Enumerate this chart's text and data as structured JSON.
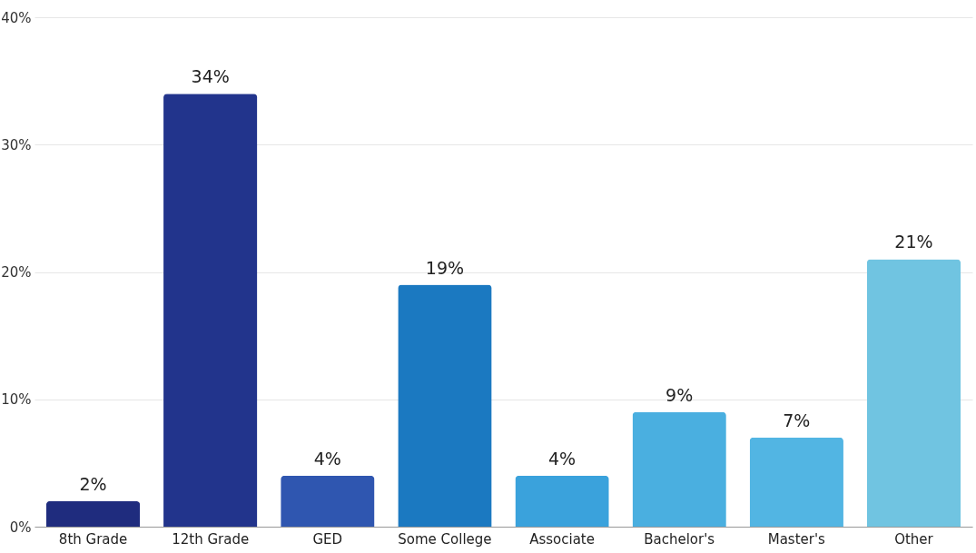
{
  "chart_data": {
    "type": "bar",
    "categories": [
      "8th Grade",
      "12th Grade",
      "GED",
      "Some College",
      "Associate",
      "Bachelor's",
      "Master's",
      "Other"
    ],
    "values": [
      2,
      34,
      4,
      19,
      4,
      9,
      7,
      21
    ],
    "value_labels": [
      "2%",
      "34%",
      "4%",
      "19%",
      "4%",
      "9%",
      "7%",
      "21%"
    ],
    "colors": [
      "#1f2c7e",
      "#22348c",
      "#2f56b0",
      "#1b79c1",
      "#3aa2dc",
      "#4aafe0",
      "#52b5e3",
      "#70c4e1"
    ],
    "ylim": [
      0,
      40
    ],
    "yticks": [
      {
        "value": 0,
        "label": "0%"
      },
      {
        "value": 10,
        "label": "10%"
      },
      {
        "value": 20,
        "label": "20%"
      },
      {
        "value": 30,
        "label": "30%"
      },
      {
        "value": 40,
        "label": "40%"
      }
    ],
    "grid": "y"
  }
}
